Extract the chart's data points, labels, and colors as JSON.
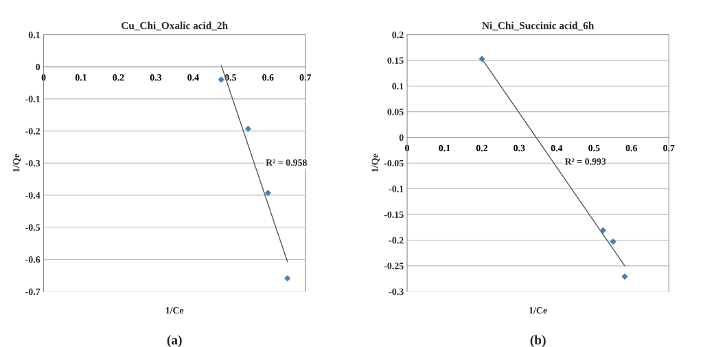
{
  "chart_data": [
    {
      "type": "scatter",
      "title": "Cu_Chi_Oxalic acid_2h",
      "xlabel": "1/Ce",
      "ylabel": "1/Qe",
      "xlim": [
        0,
        0.7
      ],
      "xticks": [
        0,
        0.1,
        0.2,
        0.3,
        0.4,
        0.5,
        0.6,
        0.7
      ],
      "ylim": [
        -0.7,
        0.1
      ],
      "yticks": [
        -0.7,
        -0.6,
        -0.5,
        -0.4,
        -0.3,
        -0.2,
        -0.1,
        0,
        0.1
      ],
      "grid": "y",
      "legend": false,
      "marker": "diamond",
      "series": [
        {
          "type": "scatter",
          "color": "#4a7ebb",
          "x": [
            0.475,
            0.547,
            0.6,
            0.652
          ],
          "values": [
            -0.04,
            -0.193,
            -0.393,
            -0.659
          ]
        },
        {
          "type": "line",
          "color": "#555555",
          "marker": "none",
          "x": [
            0.475,
            0.652
          ],
          "values": [
            0.005,
            -0.607
          ]
        }
      ],
      "annotations": [
        "R² = 0.958",
        "(a)"
      ]
    },
    {
      "type": "scatter",
      "title": "Ni_Chi_Succinic acid_6h",
      "xlabel": "1/Ce",
      "ylabel": "1/Qe",
      "xlim": [
        0,
        0.7
      ],
      "xticks": [
        0,
        0.1,
        0.2,
        0.3,
        0.4,
        0.5,
        0.6,
        0.7
      ],
      "ylim": [
        -0.3,
        0.2
      ],
      "yticks": [
        -0.3,
        -0.25,
        -0.2,
        -0.15,
        -0.1,
        -0.05,
        0,
        0.05,
        0.1,
        0.15,
        0.2
      ],
      "grid": "y",
      "legend": false,
      "marker": "diamond",
      "series": [
        {
          "type": "scatter",
          "color": "#4a7ebb",
          "x": [
            0.2,
            0.524,
            0.551,
            0.582
          ],
          "values": [
            0.153,
            -0.181,
            -0.203,
            -0.271
          ]
        },
        {
          "type": "line",
          "color": "#555555",
          "marker": "none",
          "x": [
            0.2,
            0.582
          ],
          "values": [
            0.153,
            -0.25
          ]
        }
      ],
      "annotations": [
        "R² = 0.993",
        "(b)"
      ]
    }
  ]
}
